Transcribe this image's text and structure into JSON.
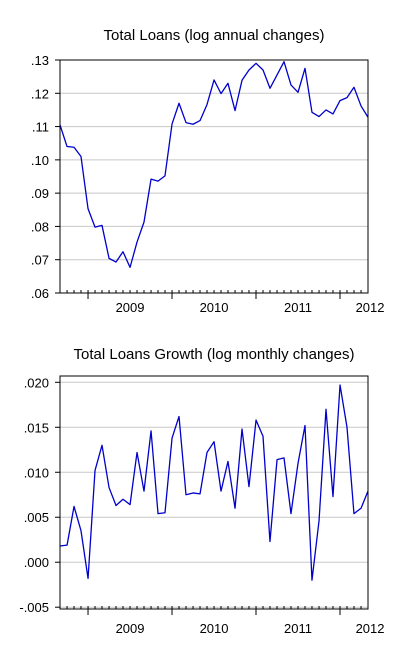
{
  "chart_data": [
    {
      "type": "line",
      "title": "Total Loans (log annual changes)",
      "xlabel": "",
      "ylabel": "",
      "x_tick_labels": [
        "2009",
        "2010",
        "2011",
        "2012"
      ],
      "y_tick_labels": [
        ".06",
        ".07",
        ".08",
        ".09",
        ".10",
        ".11",
        ".12",
        ".13"
      ],
      "y_ticks": [
        0.06,
        0.07,
        0.08,
        0.09,
        0.1,
        0.11,
        0.12,
        0.13
      ],
      "ylim": [
        0.06,
        0.13
      ],
      "xlim": [
        2008.583,
        2012.25
      ],
      "grid": true,
      "line_color": "#0000cc",
      "x": [
        2008.583,
        2008.667,
        2008.75,
        2008.833,
        2008.917,
        2009.0,
        2009.083,
        2009.167,
        2009.25,
        2009.333,
        2009.417,
        2009.5,
        2009.583,
        2009.667,
        2009.75,
        2009.833,
        2009.917,
        2010.0,
        2010.083,
        2010.167,
        2010.25,
        2010.333,
        2010.417,
        2010.5,
        2010.583,
        2010.667,
        2010.75,
        2010.833,
        2010.917,
        2011.0,
        2011.083,
        2011.167,
        2011.25,
        2011.333,
        2011.417,
        2011.5,
        2011.583,
        2011.667,
        2011.75,
        2011.833,
        2011.917,
        2012.0,
        2012.083,
        2012.167,
        2012.25
      ],
      "series": [
        {
          "values": [
            0.1105,
            0.104,
            0.1038,
            0.101,
            0.0853,
            0.0798,
            0.0803,
            0.0704,
            0.0693,
            0.0724,
            0.0677,
            0.0753,
            0.0813,
            0.0942,
            0.0936,
            0.0952,
            0.1108,
            0.117,
            0.1112,
            0.1107,
            0.1118,
            0.1166,
            0.124,
            0.1199,
            0.123,
            0.1148,
            0.1239,
            0.127,
            0.129,
            0.127,
            0.1215,
            0.1255,
            0.1295,
            0.1225,
            0.1203,
            0.1275,
            0.1143,
            0.113,
            0.115,
            0.1138,
            0.1178,
            0.1187,
            0.1218,
            0.1162,
            0.1128
          ]
        }
      ]
    },
    {
      "type": "line",
      "title": "Total Loans Growth (log monthly changes)",
      "xlabel": "",
      "ylabel": "",
      "x_tick_labels": [
        "2009",
        "2010",
        "2011",
        "2012"
      ],
      "y_tick_labels": [
        "-.005",
        ".000",
        ".005",
        ".010",
        ".015",
        ".020"
      ],
      "y_ticks": [
        -0.005,
        0.0,
        0.005,
        0.01,
        0.015,
        0.02
      ],
      "ylim": [
        -0.0052,
        0.0207
      ],
      "xlim": [
        2008.583,
        2012.25
      ],
      "grid": true,
      "line_color": "#0000cc",
      "x": [
        2008.583,
        2008.667,
        2008.75,
        2008.833,
        2008.917,
        2009.0,
        2009.083,
        2009.167,
        2009.25,
        2009.333,
        2009.417,
        2009.5,
        2009.583,
        2009.667,
        2009.75,
        2009.833,
        2009.917,
        2010.0,
        2010.083,
        2010.167,
        2010.25,
        2010.333,
        2010.417,
        2010.5,
        2010.583,
        2010.667,
        2010.75,
        2010.833,
        2010.917,
        2011.0,
        2011.083,
        2011.167,
        2011.25,
        2011.333,
        2011.417,
        2011.5,
        2011.583,
        2011.667,
        2011.75,
        2011.833,
        2011.917,
        2012.0,
        2012.083,
        2012.167,
        2012.25
      ],
      "series": [
        {
          "values": [
            0.0018,
            0.0019,
            0.0062,
            0.0035,
            -0.0018,
            0.0102,
            0.013,
            0.0083,
            0.0063,
            0.007,
            0.0064,
            0.0122,
            0.0079,
            0.0146,
            0.0054,
            0.0055,
            0.0138,
            0.0162,
            0.0075,
            0.0077,
            0.0076,
            0.0122,
            0.0134,
            0.0079,
            0.0112,
            0.006,
            0.0148,
            0.0084,
            0.0158,
            0.014,
            0.0023,
            0.0114,
            0.0116,
            0.0054,
            0.011,
            0.0152,
            -0.002,
            0.0046,
            0.017,
            0.0073,
            0.0197,
            0.015,
            0.0054,
            0.006,
            0.0079
          ]
        }
      ]
    }
  ]
}
